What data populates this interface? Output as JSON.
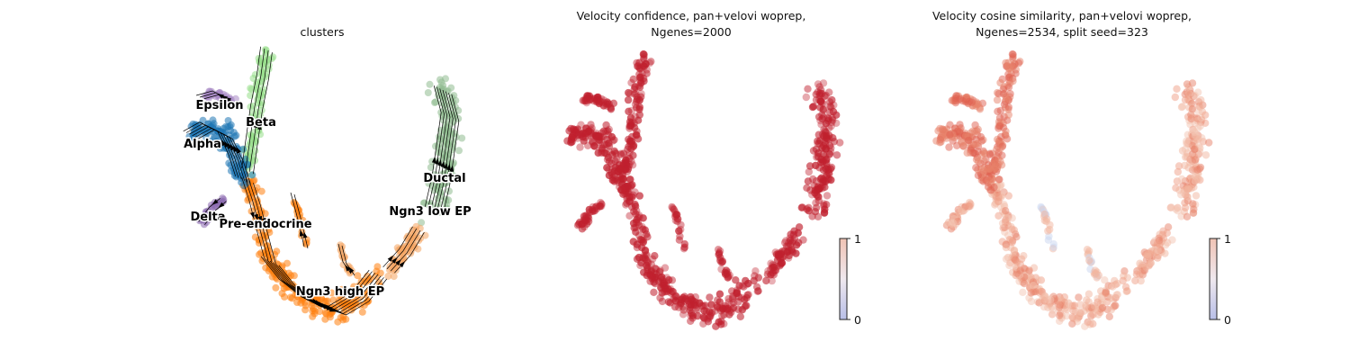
{
  "figure": {
    "panels": [
      {
        "title_lines": [
          "clusters"
        ]
      },
      {
        "title_lines": [
          "Velocity confidence, pan+velovi woprep,",
          "Ngenes=2000"
        ]
      },
      {
        "title_lines": [
          "Velocity cosine similarity, pan+velovi woprep,",
          "Ngenes=2534, split seed=323"
        ]
      }
    ]
  },
  "chart_data": [
    {
      "type": "scatter",
      "title": "clusters",
      "embedding": "umap",
      "stream_arrows": true,
      "clusters": [
        {
          "name": "Ductal",
          "color": "#8fbc8f"
        },
        {
          "name": "Ngn3 low EP",
          "color": "#f4a460"
        },
        {
          "name": "Ngn3 high EP",
          "color": "#ff7f0e"
        },
        {
          "name": "Pre-endocrine",
          "color": "#ff7f0e"
        },
        {
          "name": "Beta",
          "color": "#98df8a"
        },
        {
          "name": "Alpha",
          "color": "#1f77b4"
        },
        {
          "name": "Delta",
          "color": "#8c6bb1"
        },
        {
          "name": "Epsilon",
          "color": "#a889c4"
        }
      ],
      "legend": "on data",
      "grid": false,
      "axes": "off"
    },
    {
      "type": "scatter",
      "title": "Velocity confidence, pan+velovi woprep, Ngenes=2000",
      "colormap": "coolwarm",
      "point_color": "#c0202e",
      "colorbar": {
        "min": 0,
        "max": 1,
        "ticks": [
          "0",
          "1"
        ]
      },
      "grid": false,
      "axes": "off"
    },
    {
      "type": "scatter",
      "title": "Velocity cosine similarity, pan+velovi woprep, Ngenes=2534, split seed=323",
      "colormap": "coolwarm",
      "point_color": "#e8826a",
      "colorbar": {
        "min": 0,
        "max": 1,
        "ticks": [
          "0",
          "1"
        ]
      },
      "grid": false,
      "axes": "off"
    }
  ]
}
